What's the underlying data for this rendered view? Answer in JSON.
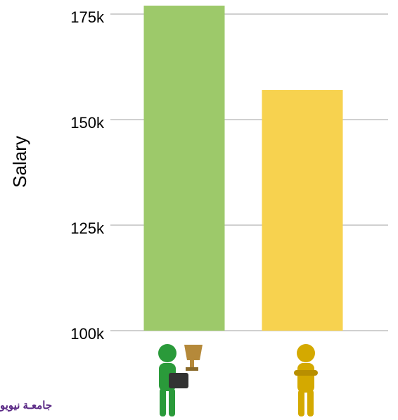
{
  "chart_data": {
    "type": "bar",
    "y_label": "Salary",
    "categories": [
      null,
      null
    ],
    "values": [
      177000,
      157000
    ],
    "colors": [
      "#9dc96a",
      "#f7d24f"
    ],
    "ylim": [
      100000,
      178000
    ],
    "yticks": [
      {
        "value": 100000,
        "label": "100k"
      },
      {
        "value": 125000,
        "label": "125k"
      },
      {
        "value": 150000,
        "label": "150k"
      },
      {
        "value": 175000,
        "label": "175k"
      }
    ],
    "grid": true,
    "watermark": "جامعـة نيويو"
  }
}
